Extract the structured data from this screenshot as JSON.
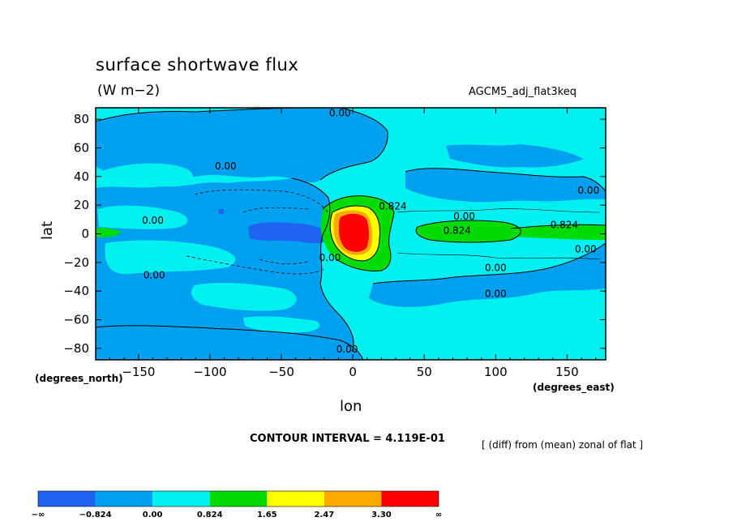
{
  "header": {
    "title": "surface shortwave flux",
    "units": "(W m−2)",
    "model": "AGCM5_adj_flat3keq"
  },
  "axes": {
    "x_name": "lon",
    "y_name": "lat",
    "x_units": "(degrees_east)",
    "y_units": "(degrees_north)"
  },
  "footer": {
    "contour_interval": "CONTOUR INTERVAL = 4.119E-01",
    "operation": "[ (diff) from (mean) zonal of flat ]"
  },
  "colors": {
    "band_below_neg": "#1e64f0",
    "band_neg": "#00a0f0",
    "band_zero": "#00f0f0",
    "band_low": "#00dc00",
    "band_mid": "#ffff00",
    "band_high": "#ffaa00",
    "band_max": "#ff0000"
  },
  "chart_data": {
    "type": "contour",
    "x_range": [
      -180,
      177
    ],
    "y_range": [
      -88,
      88
    ],
    "x_ticks": [
      -150,
      -100,
      -50,
      0,
      50,
      100,
      150
    ],
    "y_ticks": [
      -80,
      -60,
      -40,
      -20,
      0,
      20,
      40,
      60,
      80
    ],
    "x_tick_labels": [
      "−150",
      "−100",
      "−50",
      "0",
      "50",
      "100",
      "150"
    ],
    "y_tick_labels": [
      "−80",
      "−60",
      "−40",
      "−20",
      "0",
      "20",
      "40",
      "60",
      "80"
    ],
    "contour_labels": [
      {
        "text": "0.00",
        "lon": -9,
        "lat": 82
      },
      {
        "text": "0.00",
        "lon": -89,
        "lat": 45
      },
      {
        "text": "0.00",
        "lon": -140,
        "lat": 7
      },
      {
        "text": "0.00",
        "lon": -139,
        "lat": -31
      },
      {
        "text": "0.00",
        "lon": -16,
        "lat": -19
      },
      {
        "text": "0.00",
        "lon": -4,
        "lat": -83
      },
      {
        "text": "0.00",
        "lon": 165,
        "lat": 28
      },
      {
        "text": "0.00",
        "lon": 78,
        "lat": 10
      },
      {
        "text": "0.00",
        "lon": 100,
        "lat": -26
      },
      {
        "text": "0.00",
        "lon": 100,
        "lat": -44
      },
      {
        "text": "0.00",
        "lon": 163,
        "lat": -13
      },
      {
        "text": "0.824",
        "lon": 28,
        "lat": 17
      },
      {
        "text": "0.824",
        "lon": 73,
        "lat": 0
      },
      {
        "text": "0.824",
        "lon": 148,
        "lat": 4
      }
    ],
    "colorbar": {
      "labels": [
        "−∞",
        "−0.824",
        "0.00",
        "0.824",
        "1.65",
        "2.47",
        "3.30",
        "∞"
      ]
    }
  }
}
